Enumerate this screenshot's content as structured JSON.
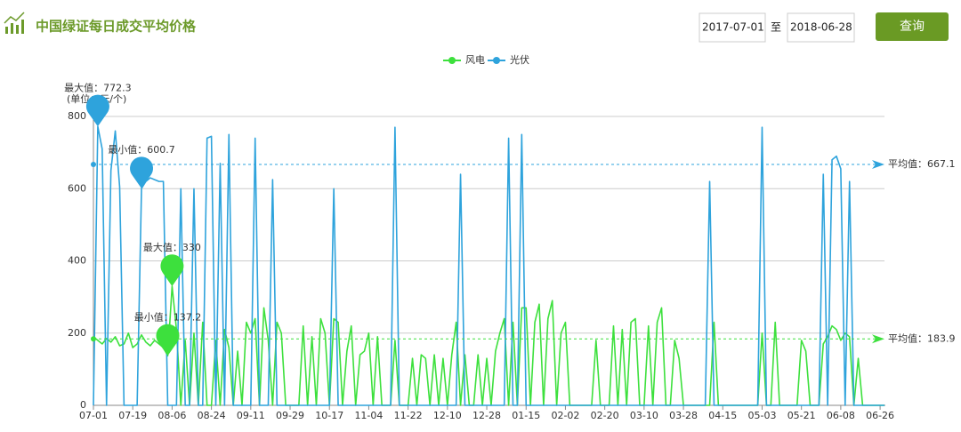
{
  "header": {
    "title": "中国绿证每日成交平均价格",
    "start_date": "2017-07-01",
    "separator": "至",
    "end_date": "2018-06-28",
    "button": "查询"
  },
  "chart_data": {
    "type": "line",
    "y_unit": "(单位：元/个)",
    "categories": [
      "07-01",
      null,
      null,
      null,
      null,
      null,
      null,
      null,
      null,
      "07-19",
      null,
      null,
      null,
      null,
      null,
      null,
      null,
      null,
      "08-06",
      null,
      null,
      null,
      null,
      null,
      null,
      null,
      null,
      "08-24",
      null,
      null,
      null,
      null,
      null,
      null,
      null,
      null,
      "09-11",
      null,
      null,
      null,
      null,
      null,
      null,
      null,
      null,
      "09-29",
      null,
      null,
      null,
      null,
      null,
      null,
      null,
      null,
      "10-17",
      null,
      null,
      null,
      null,
      null,
      null,
      null,
      null,
      "11-04",
      null,
      null,
      null,
      null,
      null,
      null,
      null,
      null,
      "11-22",
      null,
      null,
      null,
      null,
      null,
      null,
      null,
      null,
      "12-10",
      null,
      null,
      null,
      null,
      null,
      null,
      null,
      null,
      "12-28",
      null,
      null,
      null,
      null,
      null,
      null,
      null,
      null,
      "01-15",
      null,
      null,
      null,
      null,
      null,
      null,
      null,
      null,
      "02-02",
      null,
      null,
      null,
      null,
      null,
      null,
      null,
      null,
      "02-20",
      null,
      null,
      null,
      null,
      null,
      null,
      null,
      null,
      "03-10",
      null,
      null,
      null,
      null,
      null,
      null,
      null,
      null,
      "03-28",
      null,
      null,
      null,
      null,
      null,
      null,
      null,
      null,
      "04-15",
      null,
      null,
      null,
      null,
      null,
      null,
      null,
      null,
      "05-03",
      null,
      null,
      null,
      null,
      null,
      null,
      null,
      null,
      "05-21",
      null,
      null,
      null,
      null,
      null,
      null,
      null,
      null,
      "06-08",
      null,
      null,
      null,
      null,
      null,
      null,
      null,
      null,
      "06-26",
      null
    ],
    "ylim": [
      0,
      800
    ],
    "yticks": [
      0,
      200,
      400,
      600,
      800
    ],
    "grid": true,
    "series": [
      {
        "name": "风电",
        "color": "#3de03d",
        "values": [
          190,
          180,
          170,
          185,
          175,
          190,
          165,
          170,
          200,
          160,
          170,
          195,
          175,
          165,
          180,
          170,
          160,
          137.2,
          330,
          210,
          0,
          180,
          0,
          200,
          0,
          230,
          0,
          0,
          180,
          0,
          210,
          160,
          0,
          150,
          0,
          230,
          200,
          240,
          0,
          270,
          180,
          0,
          230,
          200,
          0,
          0,
          0,
          0,
          220,
          0,
          190,
          0,
          240,
          200,
          0,
          240,
          230,
          0,
          150,
          220,
          0,
          140,
          150,
          200,
          0,
          190,
          0,
          0,
          0,
          180,
          0,
          0,
          0,
          130,
          0,
          140,
          130,
          0,
          140,
          0,
          130,
          0,
          140,
          230,
          0,
          140,
          0,
          0,
          140,
          0,
          130,
          0,
          150,
          200,
          240,
          0,
          230,
          0,
          270,
          270,
          0,
          230,
          280,
          0,
          240,
          290,
          0,
          200,
          230,
          0,
          0,
          0,
          0,
          0,
          0,
          180,
          0,
          0,
          0,
          220,
          0,
          210,
          0,
          230,
          240,
          0,
          0,
          220,
          0,
          230,
          270,
          0,
          0,
          180,
          130,
          0,
          0,
          0,
          0,
          0,
          0,
          0,
          230,
          0,
          0,
          0,
          0,
          0,
          0,
          0,
          0,
          0,
          0,
          200,
          0,
          0,
          230,
          0,
          0,
          0,
          0,
          0,
          180,
          150,
          0,
          0,
          0,
          170,
          190,
          220,
          210,
          180,
          200,
          190,
          0,
          130,
          0,
          0,
          0,
          0,
          0,
          0
        ],
        "mark_points": [
          {
            "label": "最大值：330",
            "value": 330
          },
          {
            "label": "最小值：137.2",
            "value": 137.2
          }
        ],
        "mark_line": {
          "label": "平均值：183.9",
          "value": 183.9
        }
      },
      {
        "name": "光伏",
        "color": "#2ea3dc",
        "values": [
          0,
          772.3,
          710,
          0,
          650,
          760,
          605,
          0,
          0,
          0,
          0,
          600.7,
          620,
          630,
          625,
          620,
          620,
          0,
          0,
          0,
          600,
          0,
          0,
          600,
          0,
          0,
          740,
          745,
          0,
          670,
          0,
          750,
          0,
          0,
          0,
          0,
          0,
          740,
          0,
          0,
          0,
          625,
          0,
          0,
          0,
          0,
          0,
          0,
          0,
          0,
          0,
          0,
          0,
          0,
          0,
          600,
          0,
          0,
          0,
          0,
          0,
          0,
          0,
          0,
          0,
          0,
          0,
          0,
          0,
          770,
          0,
          0,
          0,
          0,
          0,
          0,
          0,
          0,
          0,
          0,
          0,
          0,
          0,
          0,
          640,
          0,
          0,
          0,
          0,
          0,
          0,
          0,
          0,
          0,
          0,
          740,
          0,
          0,
          750,
          0,
          0,
          0,
          0,
          0,
          0,
          0,
          0,
          0,
          0,
          0,
          0,
          0,
          0,
          0,
          0,
          0,
          0,
          0,
          0,
          0,
          0,
          0,
          0,
          0,
          0,
          0,
          0,
          0,
          0,
          0,
          0,
          0,
          0,
          0,
          0,
          0,
          0,
          0,
          0,
          0,
          0,
          620,
          0,
          0,
          0,
          0,
          0,
          0,
          0,
          0,
          0,
          0,
          0,
          770,
          0,
          0,
          0,
          0,
          0,
          0,
          0,
          0,
          0,
          0,
          0,
          0,
          0,
          640,
          0,
          680,
          690,
          655,
          0,
          620,
          0,
          0,
          0,
          0,
          0,
          0,
          0,
          0
        ],
        "mark_points": [
          {
            "label": "最大值：772.3",
            "value": 772.3
          },
          {
            "label": "最小值：600.7",
            "value": 600.7
          }
        ],
        "mark_line": {
          "label": "平均值：667.1",
          "value": 667.1
        }
      }
    ]
  }
}
